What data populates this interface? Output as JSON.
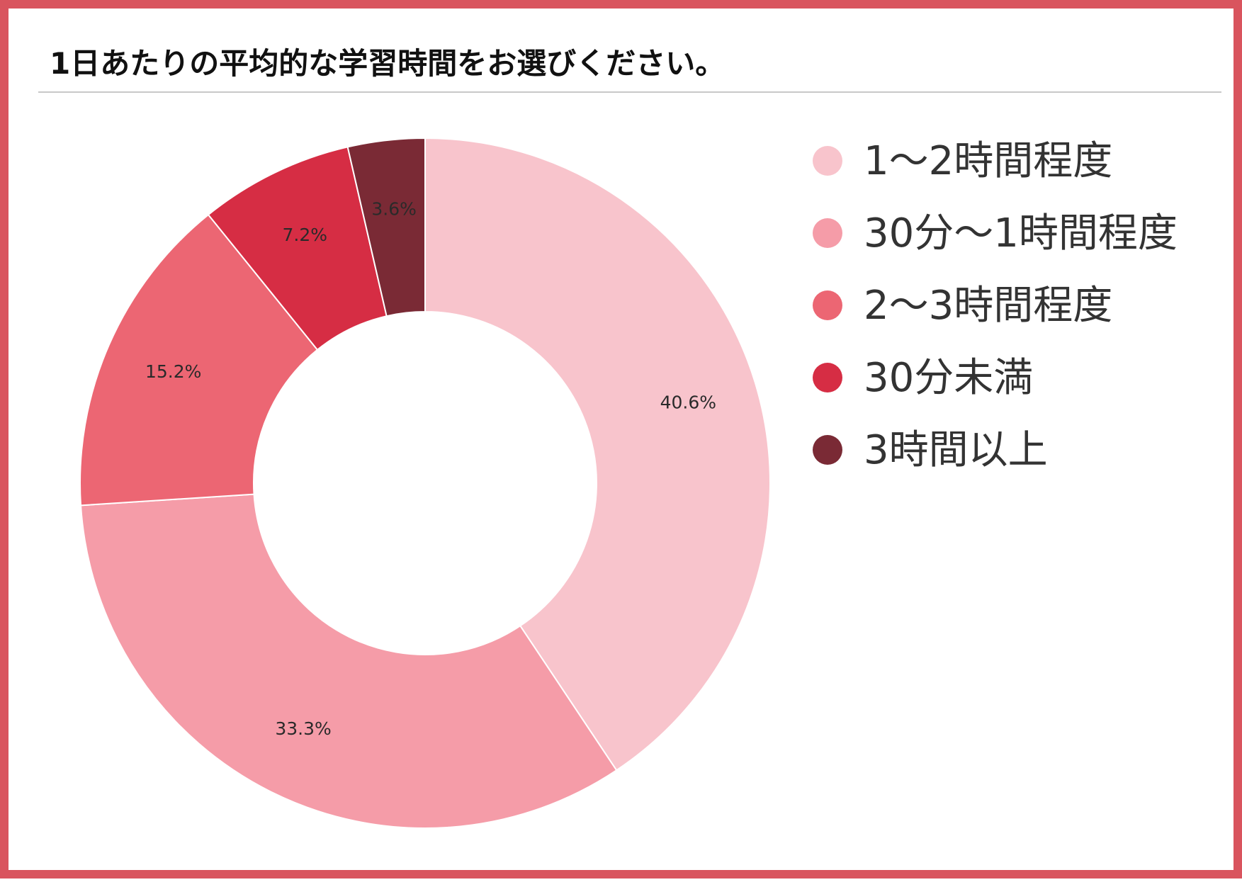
{
  "chart_data": {
    "type": "pie",
    "donut": true,
    "title": "1日あたりの平均的な学習時間をお選びください。",
    "categories": [
      "1～2時間程度",
      "30分～1時間程度",
      "2～3時間程度",
      "30分未満",
      "3時間以上"
    ],
    "values": [
      40.6,
      33.3,
      15.2,
      7.2,
      3.6
    ],
    "labels": [
      "40.6%",
      "33.3%",
      "15.2%",
      "7.2%",
      "3.6%"
    ],
    "unit": "%",
    "colors": [
      "#f8c4cc",
      "#f59ca8",
      "#ec6673",
      "#d62d44",
      "#7a2a35"
    ],
    "legend_position": "right"
  }
}
